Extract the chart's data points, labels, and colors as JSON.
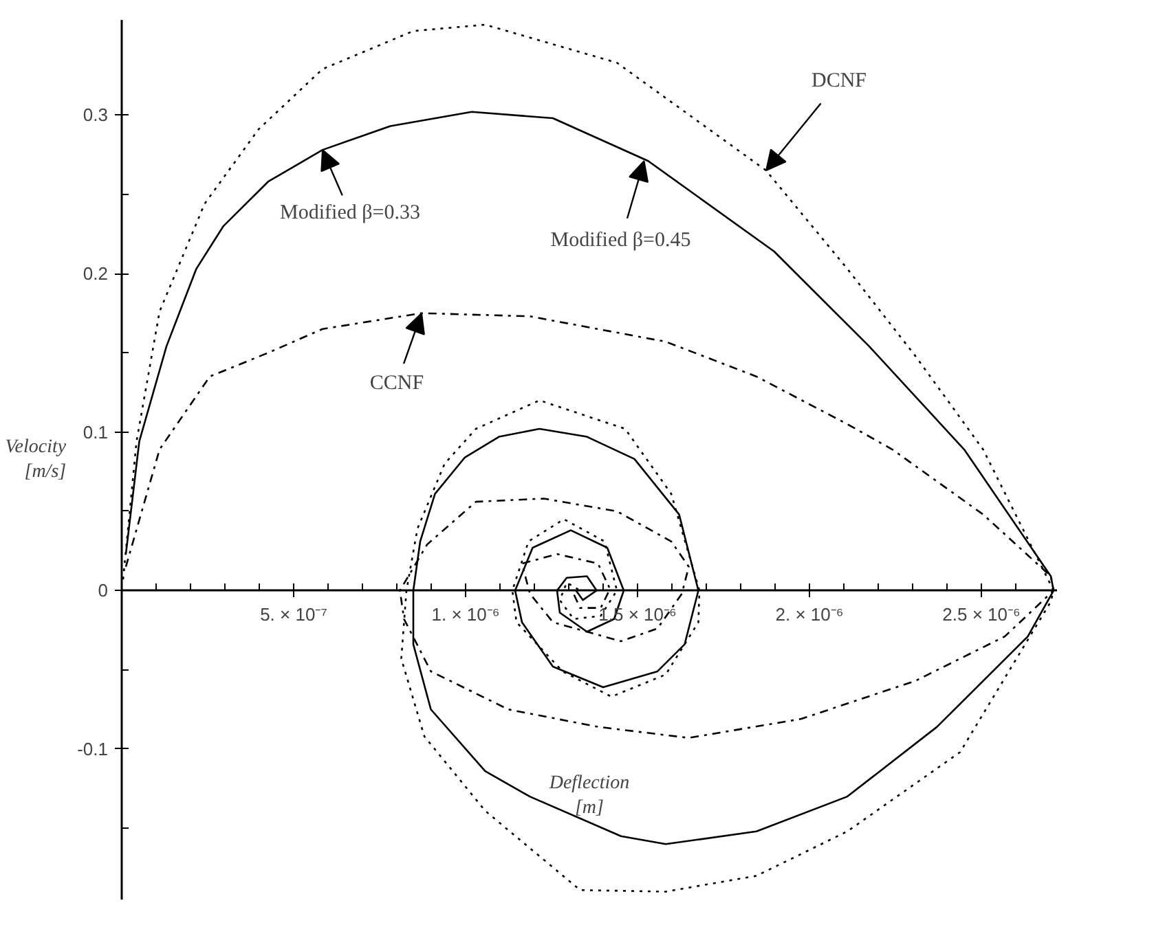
{
  "chart_data": {
    "type": "line",
    "xlabel": "Deflection\n[m]",
    "ylabel": "Velocity\n[m/s]",
    "xlim": [
      0,
      2.72e-06
    ],
    "ylim": [
      -0.195,
      0.36
    ],
    "xticks": [
      {
        "value": 1e-07,
        "label": null
      },
      {
        "value": 2e-07,
        "label": null
      },
      {
        "value": 3e-07,
        "label": null
      },
      {
        "value": 4e-07,
        "label": null
      },
      {
        "value": 5e-07,
        "label": "5. × 10⁻⁷"
      },
      {
        "value": 6e-07,
        "label": null
      },
      {
        "value": 7e-07,
        "label": null
      },
      {
        "value": 8e-07,
        "label": null
      },
      {
        "value": 9e-07,
        "label": null
      },
      {
        "value": 1e-06,
        "label": "1. × 10⁻⁶"
      },
      {
        "value": 1.1e-06,
        "label": null
      },
      {
        "value": 1.2e-06,
        "label": null
      },
      {
        "value": 1.3e-06,
        "label": null
      },
      {
        "value": 1.4e-06,
        "label": null
      },
      {
        "value": 1.5e-06,
        "label": "1.5 × 10⁻⁶"
      },
      {
        "value": 1.6e-06,
        "label": null
      },
      {
        "value": 1.7e-06,
        "label": null
      },
      {
        "value": 1.8e-06,
        "label": null
      },
      {
        "value": 1.9e-06,
        "label": null
      },
      {
        "value": 2e-06,
        "label": "2. × 10⁻⁶"
      },
      {
        "value": 2.1e-06,
        "label": null
      },
      {
        "value": 2.2e-06,
        "label": null
      },
      {
        "value": 2.3e-06,
        "label": null
      },
      {
        "value": 2.4e-06,
        "label": null
      },
      {
        "value": 2.5e-06,
        "label": "2.5 × 10⁻⁶"
      },
      {
        "value": 2.6e-06,
        "label": null
      }
    ],
    "yticks": [
      {
        "value": -0.15,
        "label": null
      },
      -0.1,
      {
        "value": -0.05,
        "label": null
      },
      0,
      {
        "value": 0.05,
        "label": null
      },
      0.1,
      {
        "value": 0.15,
        "label": null
      },
      0.2,
      {
        "value": 0.25,
        "label": null
      },
      0.3
    ],
    "grid": false,
    "series": [
      {
        "color": "#000000",
        "line_style": "dotted",
        "x": [
          4e-09,
          4.3e-08,
          1.1e-07,
          2.41e-07,
          3.98e-07,
          5.84e-07,
          8.48e-07,
          1.057e-06,
          1.44e-06,
          1.874e-06,
          2.11e-06,
          2.308e-06,
          2.505e-06,
          2.71e-06,
          2.702e-06,
          2.438e-06,
          2.11e-06,
          1.846e-06,
          1.582e-06,
          1.333e-06,
          1.057e-06,
          8.8e-07,
          8.13e-07,
          8.28e-07,
          8.6e-07,
          9.39e-07,
          1.03e-06,
          1.215e-06,
          1.464e-06,
          1.598e-06,
          1.68e-06,
          1.677e-06,
          1.582e-06,
          1.424e-06,
          1.282e-06,
          1.148e-06,
          1.136e-06,
          1.183e-06,
          1.286e-06,
          1.404e-06,
          1.44e-06,
          1.393e-06,
          1.314e-06,
          1.274e-06,
          1.294e-06,
          1.333e-06
        ],
        "values": [
          0.007,
          0.094,
          0.176,
          0.244,
          0.291,
          0.329,
          0.353,
          0.357,
          0.333,
          0.265,
          0.203,
          0.148,
          0.089,
          0,
          -0.007,
          -0.102,
          -0.152,
          -0.18,
          -0.19,
          -0.189,
          -0.139,
          -0.092,
          -0.043,
          0,
          0.039,
          0.08,
          0.102,
          0.12,
          0.102,
          0.061,
          0,
          -0.02,
          -0.053,
          -0.067,
          -0.051,
          -0.02,
          0,
          0.031,
          0.045,
          0.031,
          0,
          -0.016,
          -0.018,
          -0.006,
          0.005,
          0
        ]
      },
      {
        "color": "#000000",
        "line_style": "solid",
        "x": [
          1.2e-08,
          5.1e-08,
          1.3e-07,
          2.17e-07,
          2.96e-07,
          4.26e-07,
          5.84e-07,
          7.81e-07,
          1.018e-06,
          1.254e-06,
          1.531e-06,
          1.897e-06,
          2.174e-06,
          2.45e-06,
          2.702e-06,
          2.71e-06,
          2.635e-06,
          2.371e-06,
          2.11e-06,
          1.846e-06,
          1.582e-06,
          1.452e-06,
          1.187e-06,
          1.057e-06,
          8.99e-07,
          8.48e-07,
          8.48e-07,
          8.68e-07,
          9.11e-07,
          9.98e-07,
          1.097e-06,
          1.215e-06,
          1.353e-06,
          1.491e-06,
          1.621e-06,
          1.677e-06,
          1.637e-06,
          1.558e-06,
          1.4e-06,
          1.254e-06,
          1.164e-06,
          1.144e-06,
          1.195e-06,
          1.306e-06,
          1.412e-06,
          1.46e-06,
          1.432e-06,
          1.353e-06,
          1.274e-06,
          1.266e-06,
          1.294e-06,
          1.353e-06,
          1.381e-06,
          1.341e-06,
          1.321e-06
        ],
        "values": [
          0.023,
          0.094,
          0.154,
          0.203,
          0.23,
          0.258,
          0.278,
          0.293,
          0.302,
          0.298,
          0.271,
          0.214,
          0.154,
          0.089,
          0.009,
          0,
          -0.029,
          -0.086,
          -0.13,
          -0.152,
          -0.16,
          -0.155,
          -0.13,
          -0.114,
          -0.075,
          -0.034,
          0,
          0.031,
          0.061,
          0.084,
          0.097,
          0.102,
          0.097,
          0.083,
          0.048,
          0,
          -0.034,
          -0.051,
          -0.061,
          -0.048,
          -0.02,
          0,
          0.027,
          0.038,
          0.027,
          0,
          -0.018,
          -0.026,
          -0.014,
          0,
          0.008,
          0.009,
          0,
          -0.006,
          0
        ]
      },
      {
        "color": "#000000",
        "line_style": "dashdot",
        "x": [
          1.2e-08,
          1.1e-07,
          2.56e-07,
          4.26e-07,
          5.84e-07,
          8.72e-07,
          1.187e-06,
          1.582e-06,
          1.846e-06,
          2.11e-06,
          2.241e-06,
          2.505e-06,
          2.702e-06,
          2.71e-06,
          2.568e-06,
          2.308e-06,
          1.976e-06,
          1.649e-06,
          1.385e-06,
          1.124e-06,
          8.99e-07,
          8.21e-07,
          8.09e-07,
          8.88e-07,
          1.03e-06,
          1.227e-06,
          1.44e-06,
          1.598e-06,
          1.649e-06,
          1.629e-06,
          1.558e-06,
          1.452e-06,
          1.254e-06,
          1.187e-06,
          1.164e-06,
          1.266e-06,
          1.385e-06,
          1.42e-06,
          1.393e-06,
          1.333e-06,
          1.314e-06
        ],
        "values": [
          0.015,
          0.089,
          0.135,
          0.15,
          0.165,
          0.175,
          0.173,
          0.157,
          0.135,
          0.105,
          0.089,
          0.048,
          0.009,
          0,
          -0.029,
          -0.057,
          -0.081,
          -0.093,
          -0.086,
          -0.075,
          -0.051,
          -0.018,
          0,
          0.029,
          0.056,
          0.058,
          0.05,
          0.031,
          0.015,
          -0.002,
          -0.024,
          -0.032,
          -0.02,
          -0.002,
          0.017,
          0.023,
          0.017,
          0.001,
          -0.011,
          -0.011,
          -0.002
        ]
      }
    ],
    "annotations": [
      {
        "text": "Modified β=0.33",
        "x": 5.84e-07,
        "y": 0.278
      },
      {
        "text": "Modified β=0.45",
        "x": 1.519e-06,
        "y": 0.271
      },
      {
        "text": "DCNF",
        "x": 1.874e-06,
        "y": 0.265
      },
      {
        "text": "CCNF",
        "x": 8.72e-07,
        "y": 0.175
      }
    ]
  }
}
